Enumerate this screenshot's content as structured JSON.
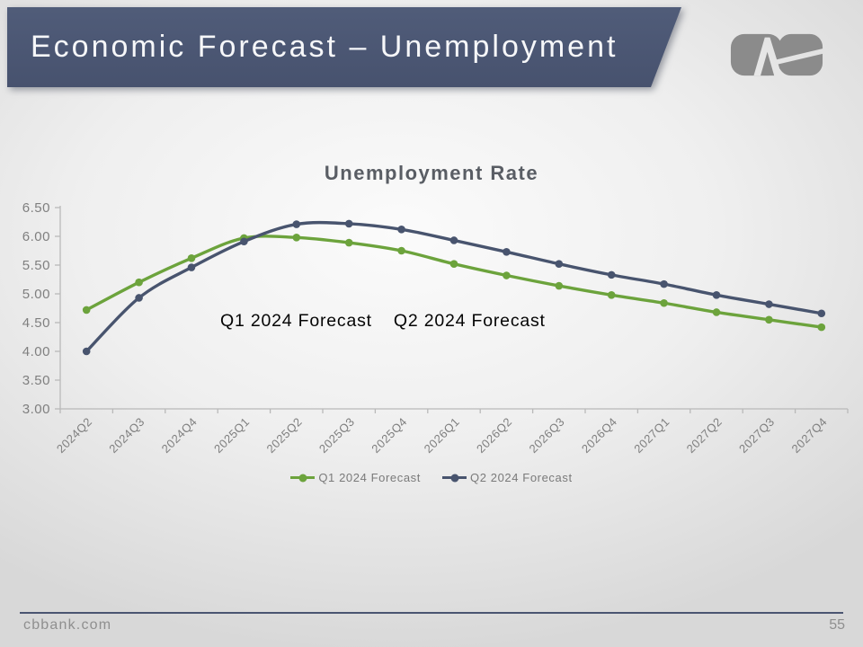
{
  "slide": {
    "title": "Economic Forecast – Unemployment",
    "logo": "cvb-bank-logo",
    "footer": {
      "website": "cbbank.com",
      "page_number": "55"
    }
  },
  "chart_data": {
    "type": "line",
    "title": "Unemployment Rate",
    "categories": [
      "2024Q2",
      "2024Q3",
      "2024Q4",
      "2025Q1",
      "2025Q2",
      "2025Q3",
      "2025Q4",
      "2026Q1",
      "2026Q2",
      "2026Q3",
      "2026Q4",
      "2027Q1",
      "2027Q2",
      "2027Q3",
      "2027Q4"
    ],
    "series": [
      {
        "name": "Q1 2024 Forecast",
        "color": "#6CA33C",
        "values": [
          4.72,
          5.2,
          5.62,
          5.97,
          5.98,
          5.89,
          5.75,
          5.52,
          5.32,
          5.14,
          4.98,
          4.84,
          4.68,
          4.55,
          4.42
        ]
      },
      {
        "name": "Q2 2024 Forecast",
        "color": "#48546E",
        "values": [
          4.0,
          4.93,
          5.46,
          5.91,
          6.21,
          6.22,
          6.12,
          5.93,
          5.73,
          5.52,
          5.33,
          5.17,
          4.98,
          4.82,
          4.66
        ]
      }
    ],
    "xlabel": "",
    "ylabel": "",
    "ylim": [
      3.0,
      6.5
    ],
    "ytick_step": 0.5,
    "ytick_labels": [
      "6.50",
      "6.00",
      "5.50",
      "5.00",
      "4.50",
      "4.00",
      "3.50",
      "3.00"
    ],
    "grid": false,
    "legend_position": "bottom",
    "line_style": "smooth",
    "marker": "circle",
    "annotations": [
      "Q1 2024 Forecast",
      "Q2 2024 Forecast"
    ],
    "axis_color": "#b9b9b9",
    "tick_label_color": "#7f7f7f"
  }
}
